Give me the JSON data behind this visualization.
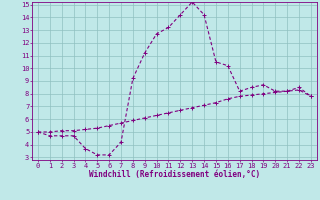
{
  "xlabel": "Windchill (Refroidissement éolien,°C)",
  "background_color": "#c0e8e8",
  "line_color": "#800080",
  "grid_color": "#90c0c0",
  "x_values": [
    0,
    1,
    2,
    3,
    4,
    5,
    6,
    7,
    8,
    9,
    10,
    11,
    12,
    13,
    14,
    15,
    16,
    17,
    18,
    19,
    20,
    21,
    22,
    23
  ],
  "line1_y": [
    5.0,
    4.7,
    4.7,
    4.7,
    3.7,
    3.2,
    3.2,
    4.2,
    9.2,
    11.2,
    12.7,
    13.2,
    14.2,
    15.2,
    14.2,
    10.5,
    10.2,
    8.2,
    8.5,
    8.7,
    8.2,
    8.2,
    8.5,
    7.8
  ],
  "line2_y": [
    5.0,
    5.0,
    5.1,
    5.1,
    5.2,
    5.3,
    5.5,
    5.7,
    5.9,
    6.1,
    6.3,
    6.5,
    6.7,
    6.9,
    7.1,
    7.3,
    7.6,
    7.8,
    7.9,
    8.0,
    8.1,
    8.2,
    8.3,
    7.8
  ],
  "ylim": [
    3,
    15
  ],
  "xlim": [
    0,
    23
  ],
  "yticks": [
    3,
    4,
    5,
    6,
    7,
    8,
    9,
    10,
    11,
    12,
    13,
    14,
    15
  ],
  "xticks": [
    0,
    1,
    2,
    3,
    4,
    5,
    6,
    7,
    8,
    9,
    10,
    11,
    12,
    13,
    14,
    15,
    16,
    17,
    18,
    19,
    20,
    21,
    22,
    23
  ],
  "marker": "+",
  "marker_size": 3,
  "line_width": 0.8,
  "tick_fontsize": 5,
  "label_fontsize": 5.5
}
